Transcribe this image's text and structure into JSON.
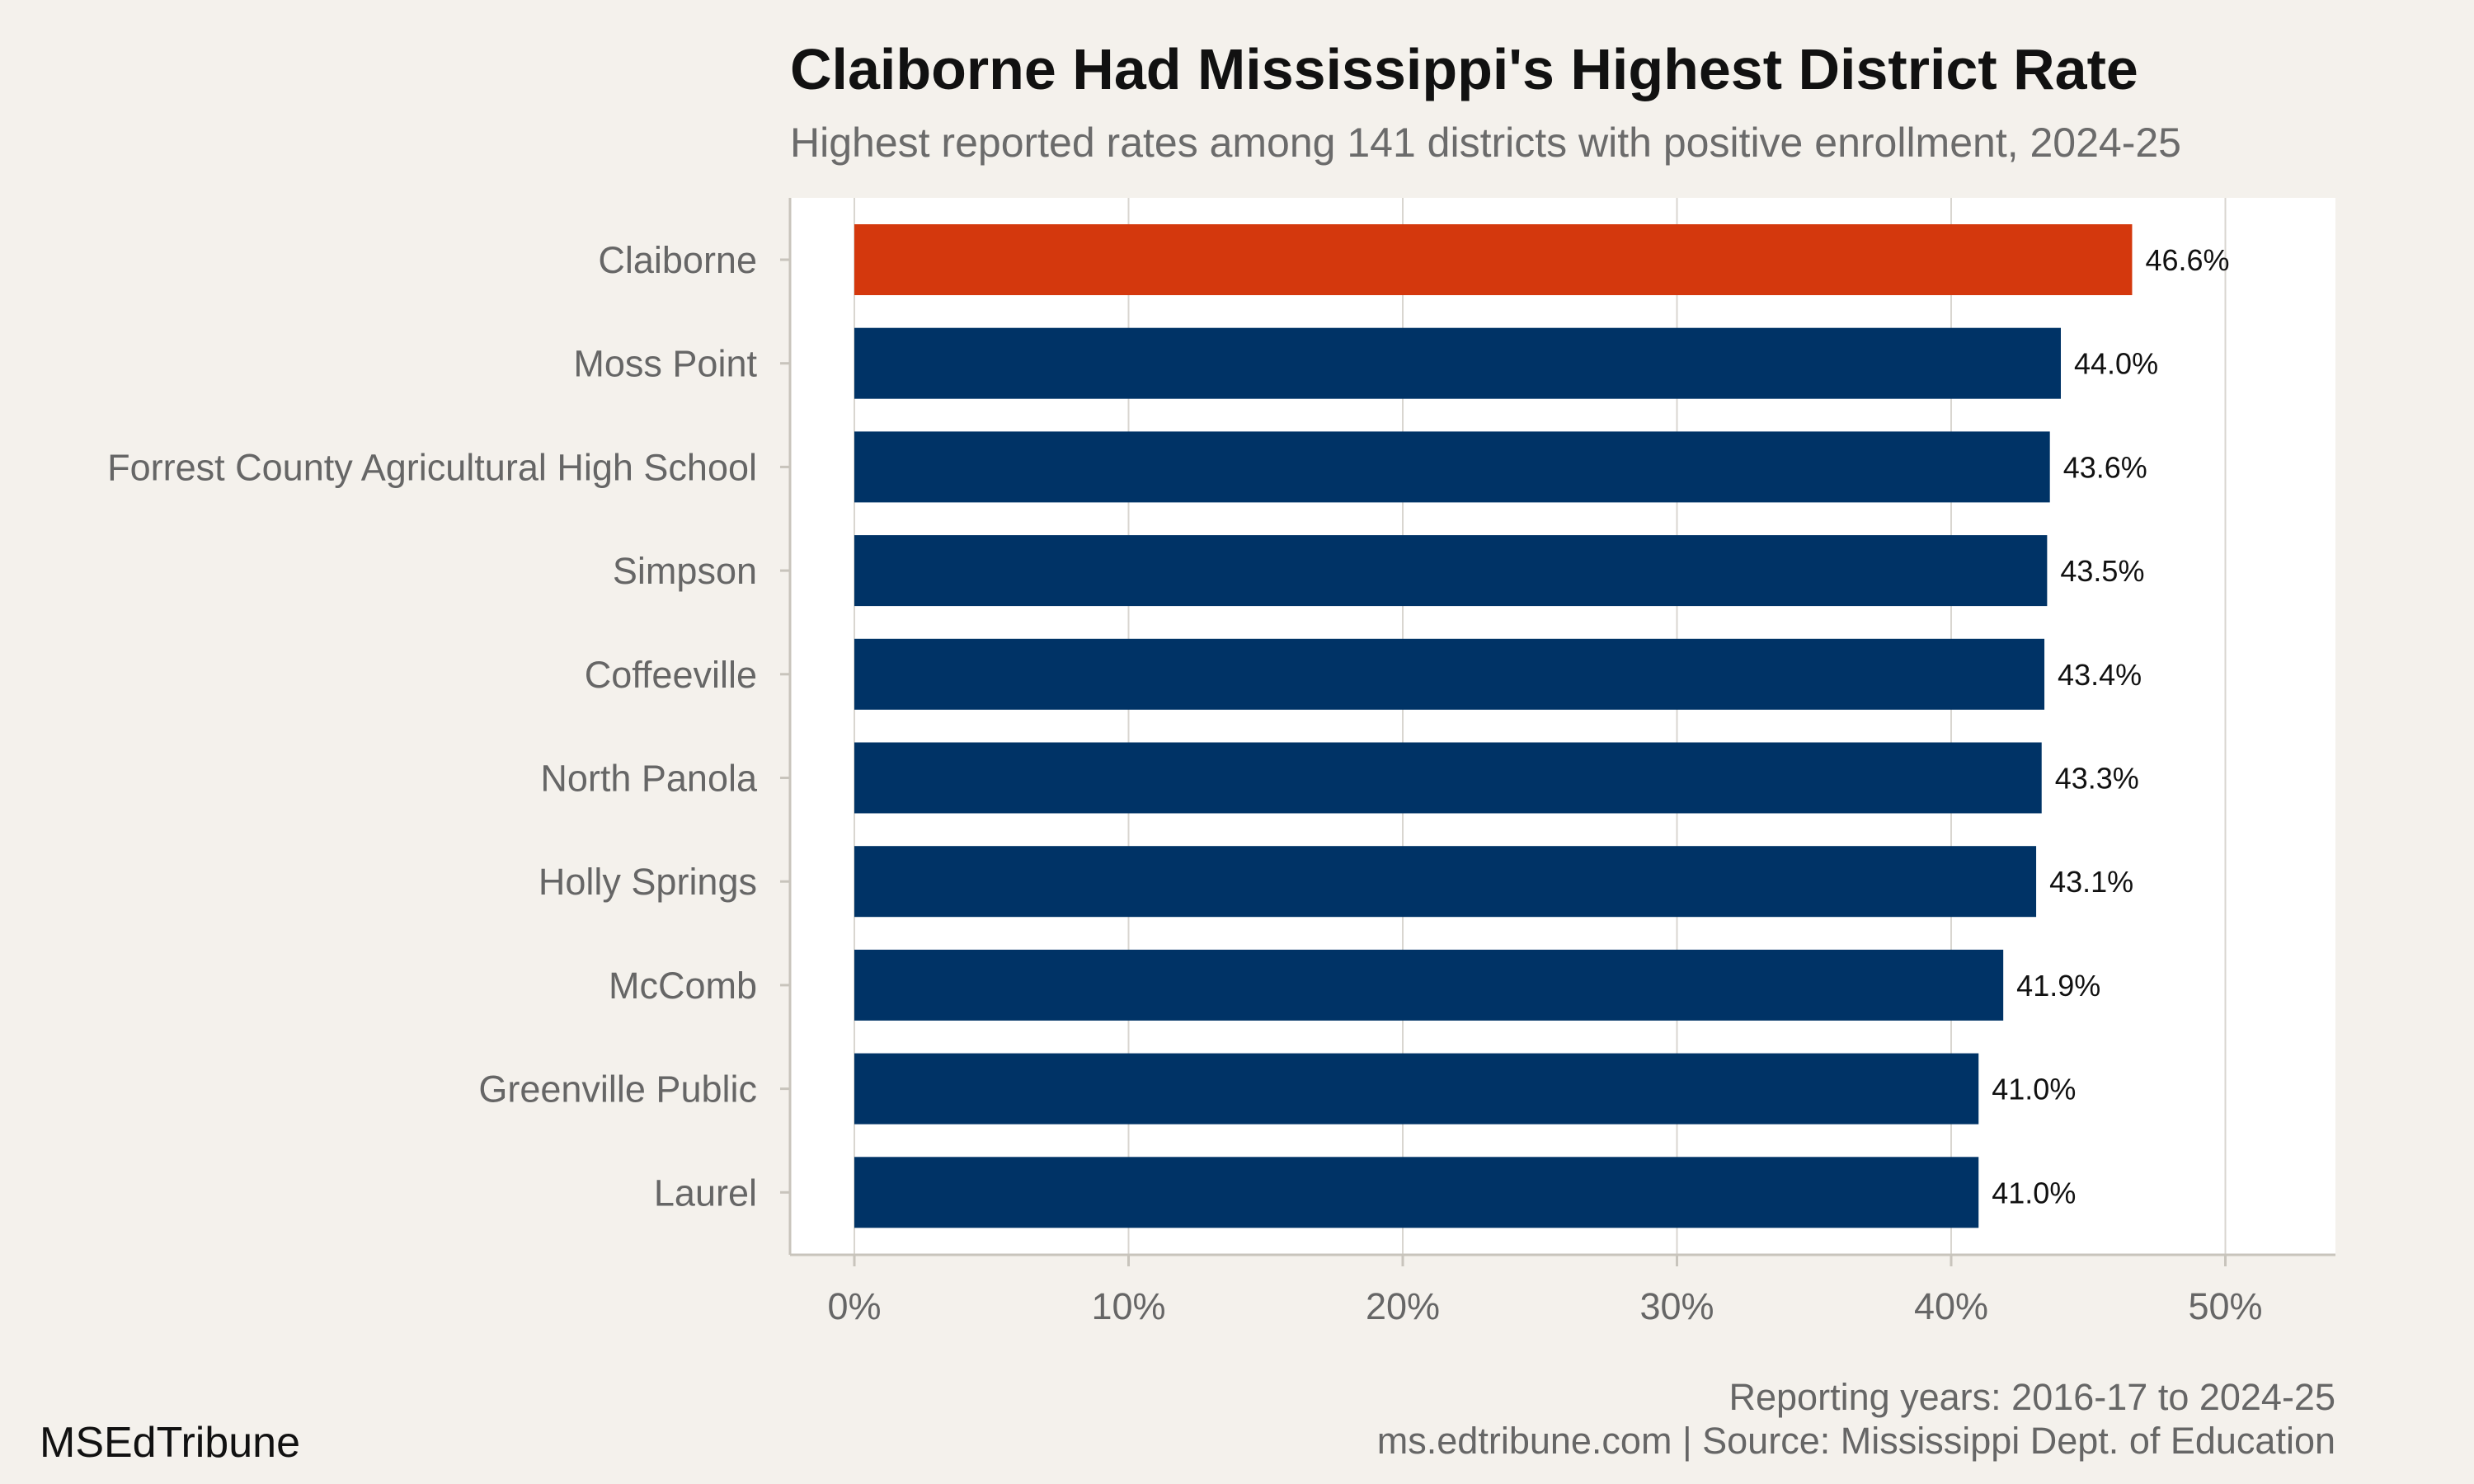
{
  "colors": {
    "background": "#f4f1ec",
    "panel": "#ffffff",
    "grid": "#d9d6d0",
    "axis": "#c8c4bc",
    "highlight": "#d4380d",
    "bar": "#003366"
  },
  "caption": {
    "line1": "Reporting years: 2016-17 to 2024-25",
    "line2": "ms.edtribune.com | Source: Mississippi Dept. of Education"
  },
  "brand": "MSEdTribune",
  "chart_data": {
    "type": "bar",
    "orientation": "horizontal",
    "title": "Claiborne Had Mississippi's Highest District Rate",
    "subtitle": "Highest reported rates among 141 districts with positive enrollment, 2024-25",
    "xlabel": "",
    "ylabel": "",
    "xlim": [
      0,
      54
    ],
    "grid": true,
    "legend": "none",
    "x_ticks": [
      0,
      10,
      20,
      30,
      40,
      50
    ],
    "x_tick_labels": [
      "0%",
      "10%",
      "20%",
      "30%",
      "40%",
      "50%"
    ],
    "categories": [
      "Claiborne",
      "Moss Point",
      "Forrest County Agricultural High School",
      "Simpson",
      "Coffeeville",
      "North Panola",
      "Holly Springs",
      "McComb",
      "Greenville Public",
      "Laurel"
    ],
    "values": [
      46.6,
      44.0,
      43.6,
      43.5,
      43.4,
      43.3,
      43.1,
      41.9,
      41.0,
      41.0
    ],
    "value_labels": [
      "46.6%",
      "44.0%",
      "43.6%",
      "43.5%",
      "43.4%",
      "43.3%",
      "43.1%",
      "41.9%",
      "41.0%",
      "41.0%"
    ],
    "highlight_category": "Claiborne"
  }
}
